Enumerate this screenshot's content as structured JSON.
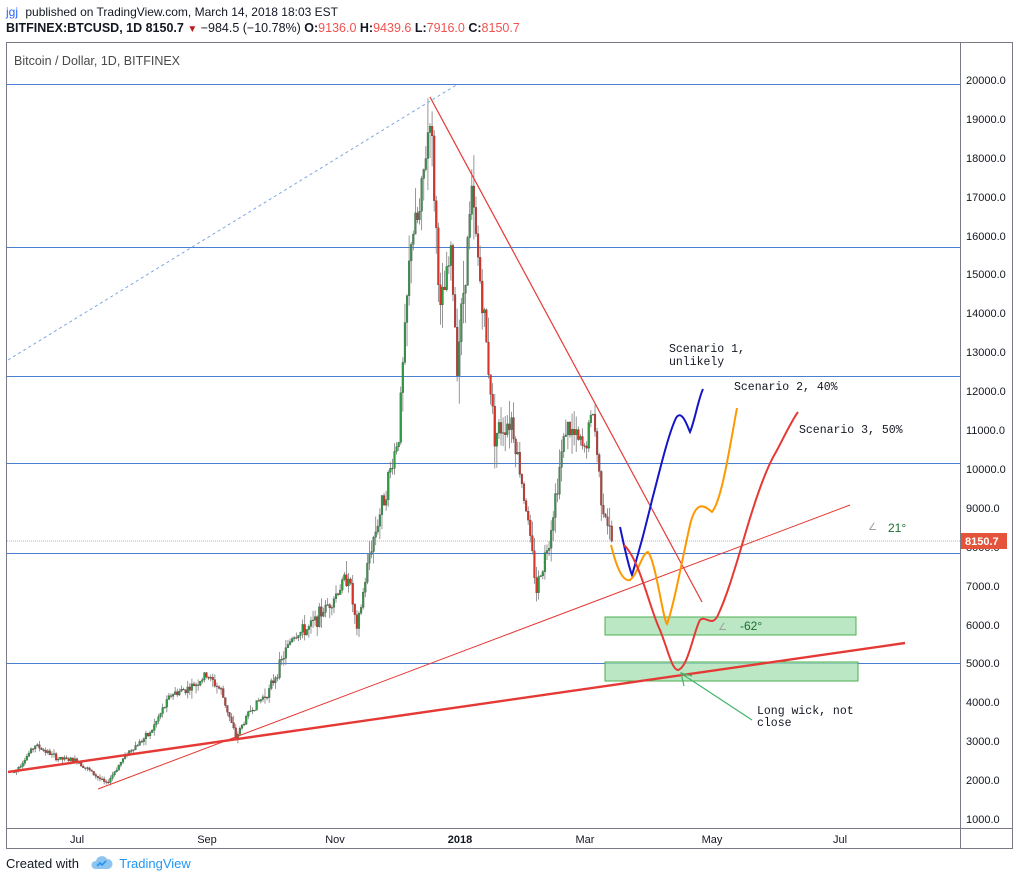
{
  "header": {
    "user": "jgj",
    "published": "published on TradingView.com, March 14, 2018 18:03 EST",
    "symbol": "BITFINEX:BTCUSD, 1D",
    "last": "8150.7",
    "change": "−984.5 (−10.78%)",
    "o_label": "O:",
    "o": "9136.0",
    "h_label": "H:",
    "h": "9439.6",
    "l_label": "L:",
    "l": "7916.0",
    "c_label": "C:",
    "c": "8150.7"
  },
  "footer": {
    "created_with": "Created with",
    "brand": "TradingView"
  },
  "chart_data": {
    "type": "candlestick",
    "title": "Bitcoin / Dollar, 1D, BITFINEX",
    "y_ticks": [
      "20000.0",
      "19000.0",
      "18000.0",
      "17000.0",
      "16000.0",
      "15000.0",
      "14000.0",
      "13000.0",
      "12000.0",
      "11000.0",
      "10000.0",
      "9000.0",
      "8000.0",
      "7000.0",
      "6000.0",
      "5000.0",
      "4000.0",
      "3000.0",
      "2000.0",
      "1000.0"
    ],
    "ylim": [
      1000,
      20000
    ],
    "x_ticks": [
      "Jul",
      "Sep",
      "Nov",
      "2018",
      "Mar",
      "May",
      "Jul"
    ],
    "x_range": [
      "2017-06-01",
      "2018-08-31"
    ],
    "current_price": "8150.7",
    "horizontal_levels": [
      19900,
      15700,
      12400,
      10150,
      7850,
      5000
    ],
    "price_path": [
      [
        "2017-06-01",
        2200
      ],
      [
        "2017-06-11",
        2900
      ],
      [
        "2017-06-22",
        2550
      ],
      [
        "2017-07-01",
        2500
      ],
      [
        "2017-07-15",
        1900
      ],
      [
        "2017-07-25",
        2700
      ],
      [
        "2017-08-05",
        3200
      ],
      [
        "2017-08-15",
        4200
      ],
      [
        "2017-08-25",
        4400
      ],
      [
        "2017-09-01",
        4700
      ],
      [
        "2017-09-08",
        4300
      ],
      [
        "2017-09-15",
        3100
      ],
      [
        "2017-09-22",
        3800
      ],
      [
        "2017-10-01",
        4300
      ],
      [
        "2017-10-12",
        5700
      ],
      [
        "2017-10-20",
        5900
      ],
      [
        "2017-11-01",
        6700
      ],
      [
        "2017-11-08",
        7300
      ],
      [
        "2017-11-12",
        5800
      ],
      [
        "2017-11-18",
        7800
      ],
      [
        "2017-11-26",
        9500
      ],
      [
        "2017-12-02",
        10900
      ],
      [
        "2017-12-08",
        16000
      ],
      [
        "2017-12-12",
        16500
      ],
      [
        "2017-12-17",
        19200
      ],
      [
        "2017-12-22",
        14000
      ],
      [
        "2017-12-27",
        15500
      ],
      [
        "2017-12-30",
        12800
      ],
      [
        "2018-01-06",
        17000
      ],
      [
        "2018-01-12",
        13800
      ],
      [
        "2018-01-17",
        10900
      ],
      [
        "2018-01-25",
        11300
      ],
      [
        "2018-02-01",
        9000
      ],
      [
        "2018-02-06",
        6900
      ],
      [
        "2018-02-12",
        8200
      ],
      [
        "2018-02-20",
        11100
      ],
      [
        "2018-03-01",
        10500
      ],
      [
        "2018-03-05",
        11500
      ],
      [
        "2018-03-09",
        9300
      ],
      [
        "2018-03-14",
        8150
      ]
    ],
    "scenarios": [
      {
        "name": "Scenario 1, unlikely",
        "color": "#1515c8",
        "points": [
          [
            "2018-03-15",
            8500
          ],
          [
            "2018-03-22",
            7250
          ],
          [
            "2018-04-10",
            11300
          ],
          [
            "2018-04-14",
            10900
          ],
          [
            "2018-04-24",
            12000
          ]
        ]
      },
      {
        "name": "Scenario 2, 40%",
        "color": "#ff9800",
        "points": [
          [
            "2018-03-14",
            8050
          ],
          [
            "2018-03-22",
            7100
          ],
          [
            "2018-03-30",
            7850
          ],
          [
            "2018-04-06",
            6000
          ],
          [
            "2018-04-14",
            6800
          ],
          [
            "2018-04-24",
            9100
          ],
          [
            "2018-05-05",
            11600
          ]
        ]
      },
      {
        "name": "Scenario 3, 50%",
        "color": "#e53935",
        "points": [
          [
            "2018-03-14",
            8050
          ],
          [
            "2018-04-07",
            5700
          ],
          [
            "2018-04-16",
            4800
          ],
          [
            "2018-04-27",
            6000
          ],
          [
            "2018-05-08",
            8000
          ],
          [
            "2018-05-20",
            10600
          ],
          [
            "2018-05-30",
            11400
          ]
        ]
      }
    ],
    "annotations": {
      "scenario1_line1": "Scenario 1,",
      "scenario1_line2": "unlikely",
      "scenario2": "Scenario 2, 40%",
      "scenario3": "Scenario 3, 50%",
      "angle1": "21°",
      "angle2": "-62°",
      "wick_line1": "Long wick, not",
      "wick_line2": "close"
    },
    "zones": [
      [
        5800,
        6150
      ],
      [
        4550,
        5000
      ]
    ]
  }
}
